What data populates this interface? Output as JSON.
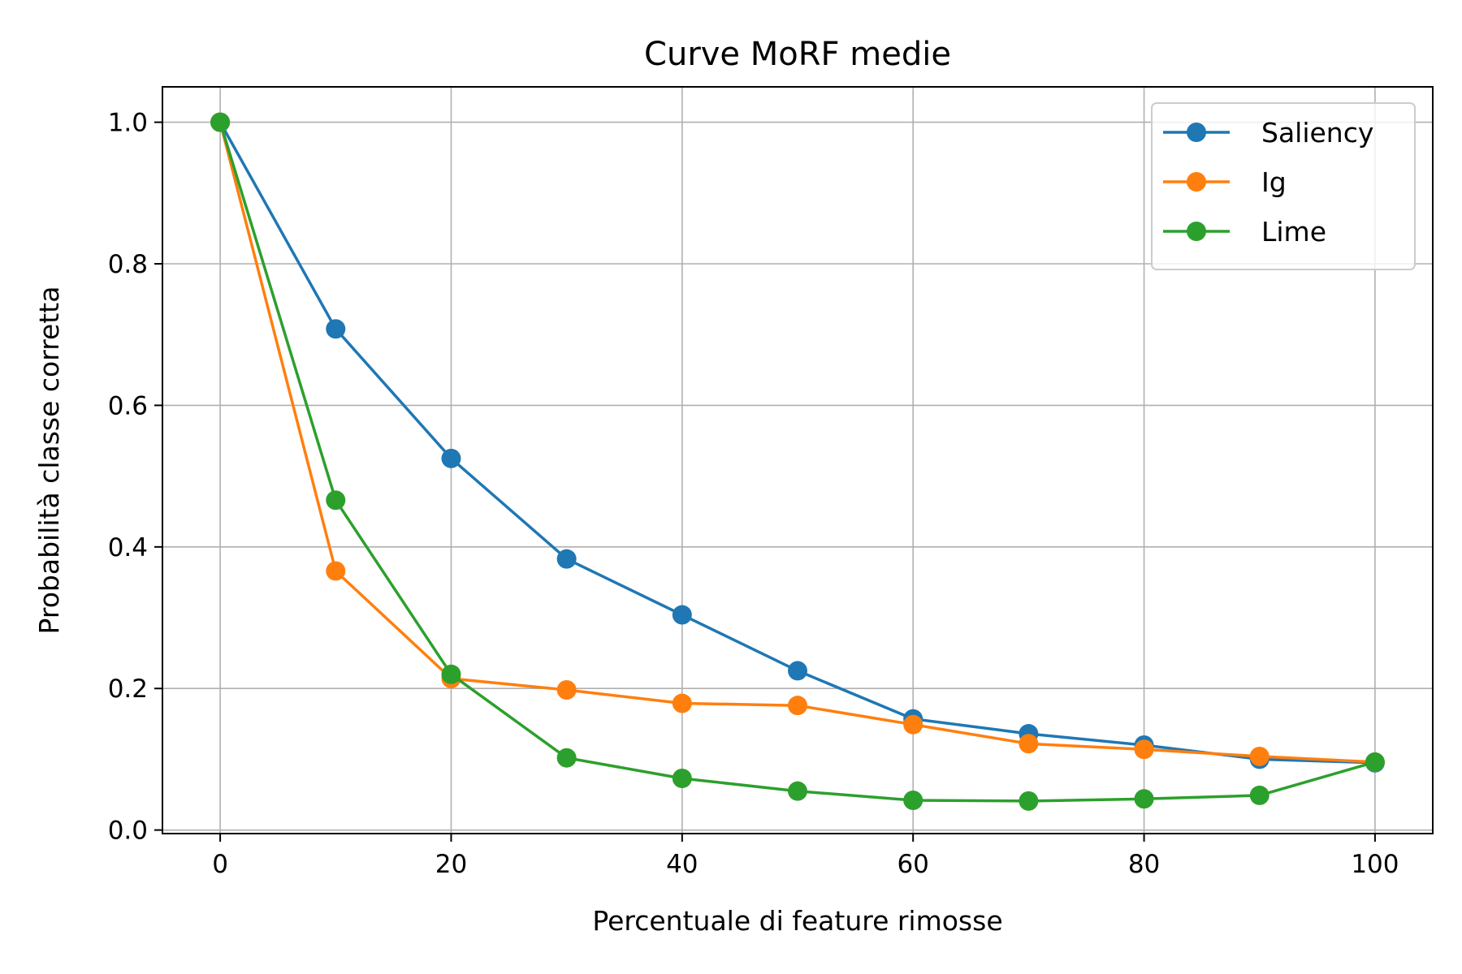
{
  "chart_data": {
    "type": "line",
    "title": "Curve MoRF medie",
    "xlabel": "Percentuale di feature rimosse",
    "ylabel": "Probabilità classe corretta",
    "xlim": [
      -5,
      105
    ],
    "ylim": [
      -0.005,
      1.05
    ],
    "xticks": [
      0,
      20,
      40,
      60,
      80,
      100
    ],
    "yticks": [
      0.0,
      0.2,
      0.4,
      0.6,
      0.8,
      1.0
    ],
    "xtick_labels": [
      "0",
      "20",
      "40",
      "60",
      "80",
      "100"
    ],
    "ytick_labels": [
      "0.0",
      "0.2",
      "0.4",
      "0.6",
      "0.8",
      "1.0"
    ],
    "grid": true,
    "legend_position": "top-right",
    "x": [
      0,
      10,
      20,
      30,
      40,
      50,
      60,
      70,
      80,
      90,
      100
    ],
    "series": [
      {
        "name": "Saliency",
        "color": "#1f77b4",
        "values": [
          1.0,
          0.708,
          0.525,
          0.383,
          0.304,
          0.225,
          0.157,
          0.136,
          0.12,
          0.1,
          0.095
        ]
      },
      {
        "name": "Ig",
        "color": "#ff7f0e",
        "values": [
          1.0,
          0.366,
          0.214,
          0.198,
          0.179,
          0.176,
          0.149,
          0.122,
          0.114,
          0.104,
          0.096
        ]
      },
      {
        "name": "Lime",
        "color": "#2ca02c",
        "values": [
          1.0,
          0.466,
          0.22,
          0.102,
          0.073,
          0.055,
          0.042,
          0.041,
          0.044,
          0.049,
          0.096
        ]
      }
    ]
  }
}
